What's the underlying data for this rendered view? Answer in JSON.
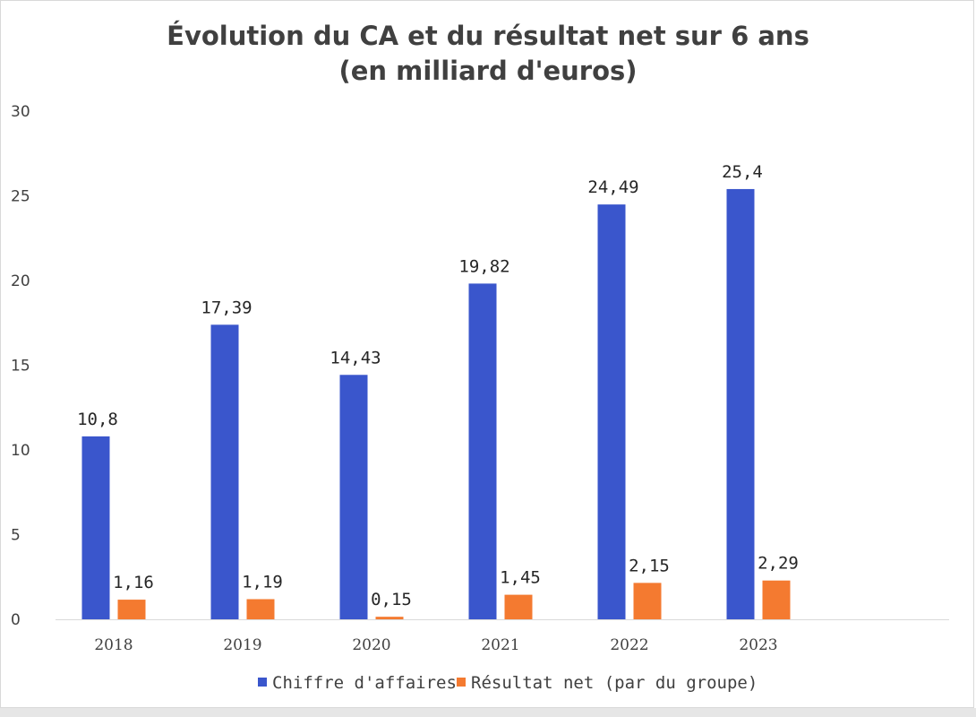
{
  "chart_data": {
    "type": "bar",
    "title": [
      "Évolution du CA et du résultat net sur 6 ans",
      "(en milliard d'euros)"
    ],
    "categories": [
      "2018",
      "2019",
      "2020",
      "2021",
      "2022",
      "2023"
    ],
    "series": [
      {
        "name": "Chiffre d'affaires",
        "color": "#3a56cc",
        "values": [
          10.8,
          17.39,
          14.43,
          19.82,
          24.49,
          25.4
        ],
        "labels": [
          "10,8",
          "17,39",
          "14,43",
          "19,82",
          "24,49",
          "25,4"
        ]
      },
      {
        "name": "Résultat net (par du groupe)",
        "color": "#f47a30",
        "values": [
          1.16,
          1.19,
          0.15,
          1.45,
          2.15,
          2.29
        ],
        "labels": [
          "1,16",
          "1,19",
          "0,15",
          "1,45",
          "2,15",
          "2,29"
        ]
      }
    ],
    "ylim": [
      0,
      30
    ],
    "yticks": [
      "0",
      "5",
      "10",
      "15",
      "20",
      "25",
      "30"
    ],
    "grid": false,
    "legend": "bottom"
  }
}
